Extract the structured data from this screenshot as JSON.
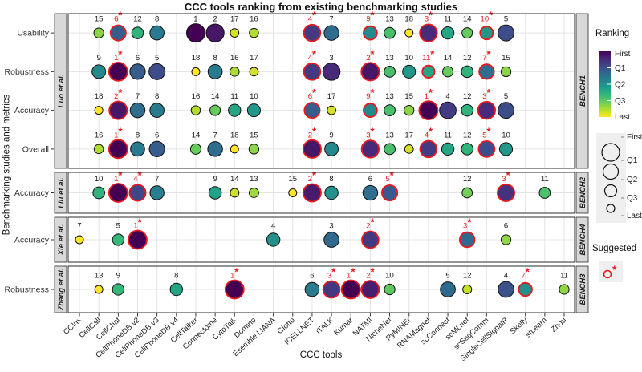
{
  "title": "CCC tools ranking from existing benchmarking studies",
  "x_axis": {
    "label": "CCC tools",
    "tools": [
      "CCInx",
      "CellCall",
      "CellChat",
      "CellPhoneDB v2",
      "CellPhoneDB v3",
      "CellPhoneDB v4",
      "CellTalker",
      "Connectome",
      "CytoTalk",
      "Domino",
      "Esemble LIANA",
      "Giotto",
      "ICELLNET",
      "iTALK",
      "Kumar",
      "NATMI",
      "NicheNet",
      "PyMINEr",
      "RNAMagnet",
      "scConnect",
      "scMLnet",
      "scSeqComm",
      "SingleCellSignalR",
      "Skelly",
      "stLearn",
      "Zhou"
    ]
  },
  "y_axis": {
    "label": "Benchmarking studies and metrics"
  },
  "legend": {
    "ranking": {
      "title": "Ranking",
      "labels": [
        "First",
        "Q1",
        "Q2",
        "Q3",
        "Last"
      ]
    },
    "size": {
      "labels": [
        "First",
        "Q1",
        "Q2",
        "Q3",
        "Last"
      ]
    },
    "suggested": {
      "title": "Suggested"
    }
  },
  "colors": {
    "viridis": [
      "#440154",
      "#482878",
      "#3e4989",
      "#31688e",
      "#26828e",
      "#1f9e89",
      "#35b779",
      "#6dcd59",
      "#b4de2c",
      "#fde725"
    ],
    "suggested": "#e8191c",
    "strip_bg": "#d8d8d8",
    "grid": "#e4e4e4",
    "panel_border": "#2b2b2b",
    "key_bg": "#efefef"
  },
  "chart_data": {
    "type": "bubble-matrix",
    "note": "points are [tool, rank, suggested]; lower rank = better (First); bubble size and viridis color encode rank within each study",
    "panels": [
      {
        "study": "Luo et al.",
        "bench": "BENCH1",
        "max_rank": 18,
        "rows": [
          {
            "metric": "Usability",
            "points": [
              [
                "CellCall",
                15,
                0
              ],
              [
                "CellChat",
                6,
                1
              ],
              [
                "CellPhoneDB v2",
                12,
                0
              ],
              [
                "CellPhoneDB v3",
                8,
                0
              ],
              [
                "CellTalker",
                1,
                0
              ],
              [
                "Connectome",
                2,
                0
              ],
              [
                "CytoTalk",
                17,
                0
              ],
              [
                "Domino",
                16,
                0
              ],
              [
                "ICELLNET",
                4,
                1
              ],
              [
                "iTALK",
                7,
                0
              ],
              [
                "NATMI",
                9,
                1
              ],
              [
                "NicheNet",
                13,
                0
              ],
              [
                "PyMINEr",
                18,
                0
              ],
              [
                "RNAMagnet",
                3,
                1
              ],
              [
                "scConnect",
                11,
                0
              ],
              [
                "scMLnet",
                14,
                0
              ],
              [
                "scSeqComm",
                10,
                1
              ],
              [
                "SingleCellSignalR",
                5,
                0
              ]
            ]
          },
          {
            "metric": "Robustness",
            "points": [
              [
                "CellCall",
                9,
                0
              ],
              [
                "CellChat",
                1,
                1
              ],
              [
                "CellPhoneDB v2",
                6,
                0
              ],
              [
                "CellPhoneDB v3",
                5,
                0
              ],
              [
                "CellTalker",
                18,
                0
              ],
              [
                "Connectome",
                8,
                0
              ],
              [
                "CytoTalk",
                16,
                0
              ],
              [
                "Domino",
                17,
                0
              ],
              [
                "ICELLNET",
                4,
                1
              ],
              [
                "iTALK",
                3,
                0
              ],
              [
                "NATMI",
                2,
                1
              ],
              [
                "NicheNet",
                13,
                0
              ],
              [
                "PyMINEr",
                10,
                0
              ],
              [
                "RNAMagnet",
                11,
                1
              ],
              [
                "scConnect",
                14,
                0
              ],
              [
                "scMLnet",
                12,
                0
              ],
              [
                "scSeqComm",
                7,
                1
              ],
              [
                "SingleCellSignalR",
                15,
                0
              ]
            ]
          },
          {
            "metric": "Accuracy",
            "points": [
              [
                "CellCall",
                18,
                0
              ],
              [
                "CellChat",
                2,
                1
              ],
              [
                "CellPhoneDB v2",
                7,
                0
              ],
              [
                "CellPhoneDB v3",
                8,
                0
              ],
              [
                "CellTalker",
                16,
                0
              ],
              [
                "Connectome",
                14,
                0
              ],
              [
                "CytoTalk",
                11,
                0
              ],
              [
                "Domino",
                10,
                0
              ],
              [
                "ICELLNET",
                6,
                1
              ],
              [
                "iTALK",
                17,
                0
              ],
              [
                "NATMI",
                9,
                1
              ],
              [
                "NicheNet",
                13,
                0
              ],
              [
                "PyMINEr",
                15,
                0
              ],
              [
                "RNAMagnet",
                1,
                1
              ],
              [
                "scConnect",
                4,
                0
              ],
              [
                "scMLnet",
                12,
                0
              ],
              [
                "scSeqComm",
                3,
                1
              ],
              [
                "SingleCellSignalR",
                5,
                0
              ]
            ]
          },
          {
            "metric": "Overall",
            "points": [
              [
                "CellCall",
                16,
                0
              ],
              [
                "CellChat",
                1,
                1
              ],
              [
                "CellPhoneDB v2",
                8,
                0
              ],
              [
                "CellPhoneDB v3",
                6,
                0
              ],
              [
                "CellTalker",
                14,
                0
              ],
              [
                "Connectome",
                7,
                0
              ],
              [
                "CytoTalk",
                18,
                0
              ],
              [
                "Domino",
                15,
                0
              ],
              [
                "ICELLNET",
                2,
                1
              ],
              [
                "iTALK",
                9,
                0
              ],
              [
                "NATMI",
                3,
                1
              ],
              [
                "NicheNet",
                13,
                0
              ],
              [
                "PyMINEr",
                17,
                0
              ],
              [
                "RNAMagnet",
                4,
                1
              ],
              [
                "scConnect",
                11,
                0
              ],
              [
                "scMLnet",
                12,
                0
              ],
              [
                "scSeqComm",
                5,
                1
              ],
              [
                "SingleCellSignalR",
                10,
                0
              ]
            ]
          }
        ]
      },
      {
        "study": "Liu et al.",
        "bench": "BENCH2",
        "max_rank": 15,
        "rows": [
          {
            "metric": "Accuracy",
            "points": [
              [
                "CellCall",
                10,
                0
              ],
              [
                "CellChat",
                1,
                1
              ],
              [
                "CellPhoneDB v2",
                4,
                1
              ],
              [
                "CellPhoneDB v3",
                7,
                0
              ],
              [
                "Connectome",
                9,
                0
              ],
              [
                "CytoTalk",
                14,
                0
              ],
              [
                "Domino",
                13,
                0
              ],
              [
                "Giotto",
                15,
                0
              ],
              [
                "ICELLNET",
                2,
                1
              ],
              [
                "iTALK",
                8,
                0
              ],
              [
                "NATMI",
                6,
                0
              ],
              [
                "NicheNet",
                5,
                1
              ],
              [
                "scMLnet",
                12,
                0
              ],
              [
                "SingleCellSignalR",
                3,
                1
              ],
              [
                "stLearn",
                11,
                0
              ]
            ]
          }
        ]
      },
      {
        "study": "Xie et al.",
        "bench": "BENCH4",
        "max_rank": 7,
        "rows": [
          {
            "metric": "Accuracy",
            "points": [
              [
                "CCInx",
                7,
                0
              ],
              [
                "CellChat",
                5,
                0
              ],
              [
                "CellPhoneDB v2",
                1,
                1
              ],
              [
                "Esemble LIANA",
                4,
                0
              ],
              [
                "iTALK",
                3,
                0
              ],
              [
                "NATMI",
                2,
                1
              ],
              [
                "scMLnet",
                3,
                1
              ],
              [
                "SingleCellSignalR",
                6,
                0
              ]
            ]
          }
        ]
      },
      {
        "study": "Zhang et al.",
        "bench": "BENCH3",
        "max_rank": 13,
        "rows": [
          {
            "metric": "Robustness",
            "points": [
              [
                "CellCall",
                13,
                0
              ],
              [
                "CellChat",
                9,
                0
              ],
              [
                "CellPhoneDB v4",
                8,
                0
              ],
              [
                "CytoTalk",
                1,
                1
              ],
              [
                "ICELLNET",
                6,
                0
              ],
              [
                "iTALK",
                3,
                1
              ],
              [
                "Kumar",
                1,
                1
              ],
              [
                "NATMI",
                2,
                1
              ],
              [
                "NicheNet",
                10,
                0
              ],
              [
                "scConnect",
                5,
                0
              ],
              [
                "scMLnet",
                12,
                0
              ],
              [
                "SingleCellSignalR",
                4,
                0
              ],
              [
                "Skelly",
                7,
                1
              ],
              [
                "Zhou",
                11,
                0
              ]
            ]
          }
        ]
      }
    ]
  }
}
